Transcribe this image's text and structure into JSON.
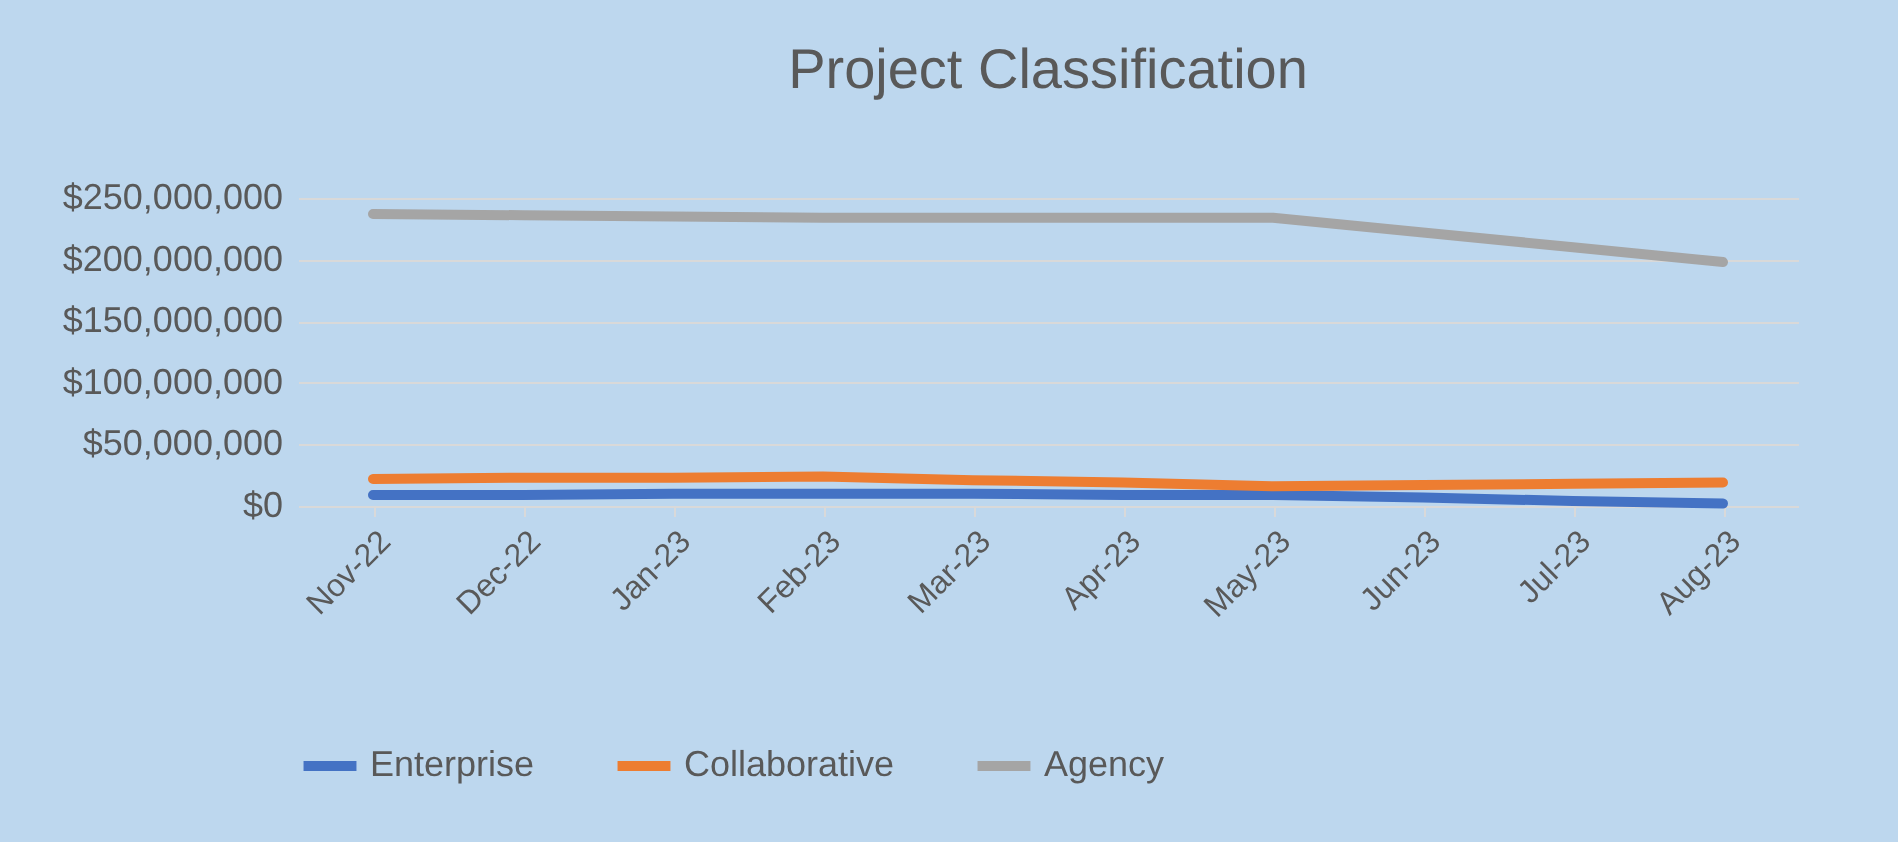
{
  "chart_data": {
    "type": "line",
    "title": "Project Classification",
    "categories": [
      "Nov-22",
      "Dec-22",
      "Jan-23",
      "Feb-23",
      "Mar-23",
      "Apr-23",
      "May-23",
      "Jun-23",
      "Jul-23",
      "Aug-23"
    ],
    "series": [
      {
        "name": "Enterprise",
        "color": "#4472c4",
        "values": [
          9000000,
          9000000,
          10000000,
          10000000,
          10000000,
          9000000,
          9000000,
          7000000,
          4000000,
          2000000
        ]
      },
      {
        "name": "Collaborative",
        "color": "#ed7d31",
        "values": [
          22000000,
          23000000,
          23000000,
          24000000,
          21000000,
          19000000,
          16000000,
          17000000,
          18000000,
          19000000
        ]
      },
      {
        "name": "Agency",
        "color": "#a5a5a5",
        "values": [
          237000000,
          236000000,
          235000000,
          234000000,
          234000000,
          234000000,
          234000000,
          222000000,
          210000000,
          198000000
        ]
      }
    ],
    "ylim": [
      0,
      250000000
    ],
    "yticks": [
      {
        "value": 0,
        "label": "$0"
      },
      {
        "value": 50000000,
        "label": "$50,000,000"
      },
      {
        "value": 100000000,
        "label": "$100,000,000"
      },
      {
        "value": 150000000,
        "label": "$150,000,000"
      },
      {
        "value": 200000000,
        "label": "$200,000,000"
      },
      {
        "value": 250000000,
        "label": "$250,000,000"
      }
    ],
    "grid": "y",
    "legend": "bottom",
    "marker": "none",
    "line_style": "solid"
  }
}
